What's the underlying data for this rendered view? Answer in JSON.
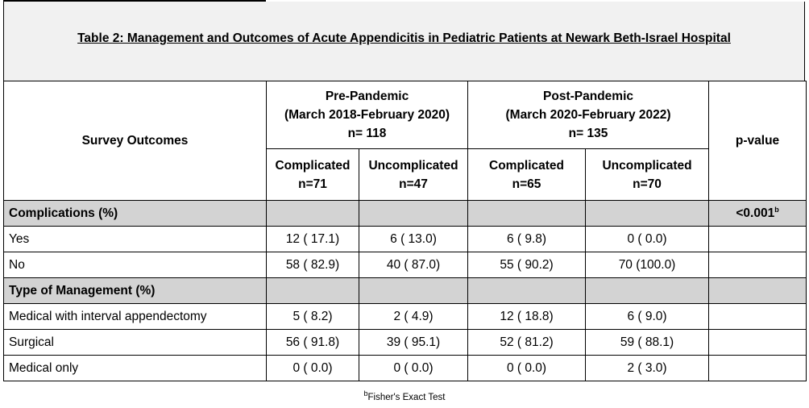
{
  "title": "Table 2: Management and Outcomes of Acute Appendicitis in Pediatric Patients at Newark Beth-Israel Hospital",
  "header": {
    "survey_outcomes": "Survey Outcomes",
    "pre": {
      "name": "Pre-Pandemic",
      "period": "(March 2018-February 2020)",
      "n": "n= 118"
    },
    "post": {
      "name": "Post-Pandemic",
      "period": "(March 2020-February 2022)",
      "n": "n= 135"
    },
    "pvalue": "p-value",
    "sub": [
      {
        "label": "Complicated",
        "n": "n=71"
      },
      {
        "label": "Uncomplicated",
        "n": "n=47"
      },
      {
        "label": "Complicated",
        "n": "n=65"
      },
      {
        "label": "Uncomplicated",
        "n": "n=70"
      }
    ]
  },
  "sections": {
    "complications": {
      "label": "Complications (%)",
      "pvalue": "<0.001",
      "pvalue_sup": "b"
    },
    "management": {
      "label": "Type of Management (%)"
    }
  },
  "rows": {
    "yes": {
      "label": "Yes",
      "values": [
        "12 ( 17.1)",
        "6 ( 13.0)",
        "6 ( 9.8)",
        "0 ( 0.0)"
      ]
    },
    "no": {
      "label": "No",
      "values": [
        "58 ( 82.9)",
        "40 ( 87.0)",
        "55 ( 90.2)",
        "70 (100.0)"
      ]
    },
    "medical_interval": {
      "label": "Medical with interval appendectomy",
      "values": [
        "5 ( 8.2)",
        "2 ( 4.9)",
        "12 ( 18.8)",
        "6 ( 9.0)"
      ]
    },
    "surgical": {
      "label": "Surgical",
      "values": [
        "56 ( 91.8)",
        "39 ( 95.1)",
        "52 ( 81.2)",
        "59 ( 88.1)"
      ]
    },
    "medical_only": {
      "label": "Medical only",
      "values": [
        "0 ( 0.0)",
        "0 ( 0.0)",
        "0 ( 0.0)",
        "2 ( 3.0)"
      ]
    }
  },
  "footnote": {
    "sup": "b",
    "text": "Fisher's Exact Test"
  }
}
